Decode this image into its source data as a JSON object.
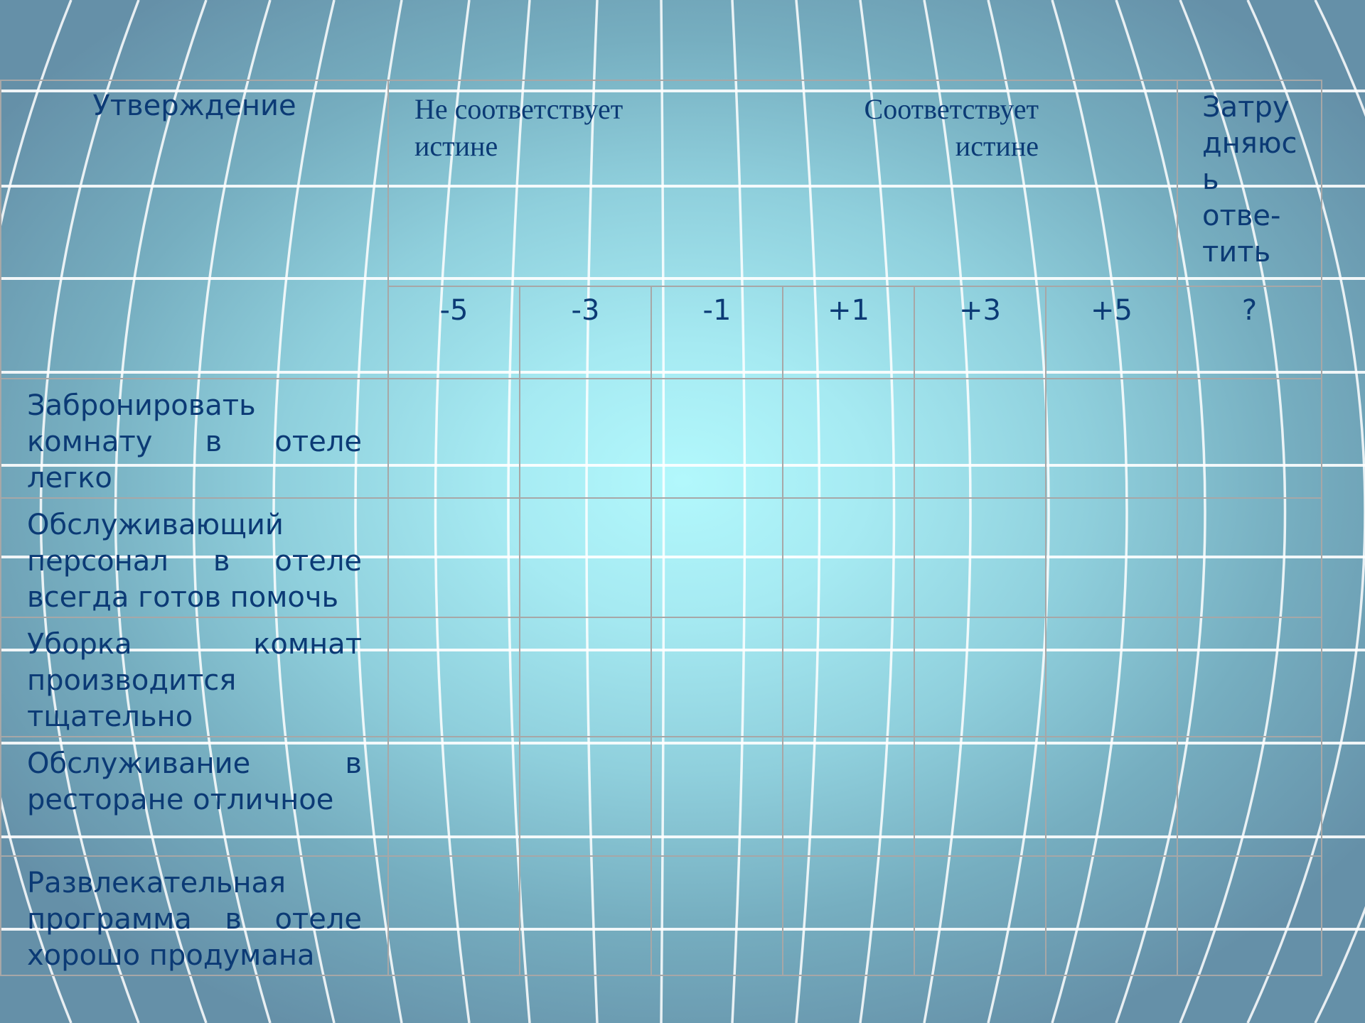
{
  "table": {
    "header": {
      "statement": "Утверждение",
      "not_true": [
        "Не соответствует",
        "истине"
      ],
      "true": [
        "Соответствует",
        "истине"
      ],
      "dunno": [
        "Затру",
        "дняюс",
        "ь",
        "отве-",
        "тить"
      ]
    },
    "scale": [
      "-5",
      "-3",
      "-1",
      "+1",
      "+3",
      "+5",
      "?"
    ],
    "rows": [
      "Забронировать комнату в отеле легко",
      "Обслуживающий персонал в отеле всегда готов помочь",
      "Уборка комнат производится тщательно",
      "Обслуживание в ресторане отличное",
      "Развлекательная программа в отеле хорошо продумана"
    ]
  },
  "colors": {
    "text": "#0b3a75",
    "border": "#a7a7a7",
    "background_center": "#b2f8fc",
    "background_edge": "#6590a8"
  }
}
